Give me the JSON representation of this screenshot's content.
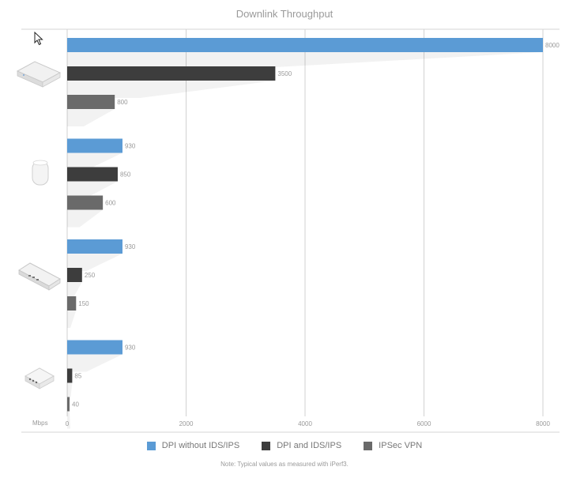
{
  "chart_data": {
    "type": "bar",
    "orientation": "horizontal",
    "title": "Downlink Throughput",
    "unit_label": "Mbps",
    "note": "Note: Typical values as measured with iPerf3.",
    "xlim": [
      0,
      8000
    ],
    "xticks": [
      0,
      2000,
      4000,
      6000,
      8000
    ],
    "grid": true,
    "legend_position": "bottom",
    "categories": [
      "device-rack-gateway",
      "device-dream-machine",
      "device-rack-router",
      "device-compact-gateway"
    ],
    "series": [
      {
        "name": "DPI without IDS/IPS",
        "color": "#5b9bd5",
        "values": [
          8000,
          930,
          930,
          930
        ]
      },
      {
        "name": "DPI and IDS/IPS",
        "color": "#3d3d3d",
        "values": [
          3500,
          850,
          250,
          85
        ]
      },
      {
        "name": "IPSec VPN",
        "color": "#6a6a6a",
        "values": [
          800,
          600,
          150,
          40
        ]
      }
    ]
  }
}
